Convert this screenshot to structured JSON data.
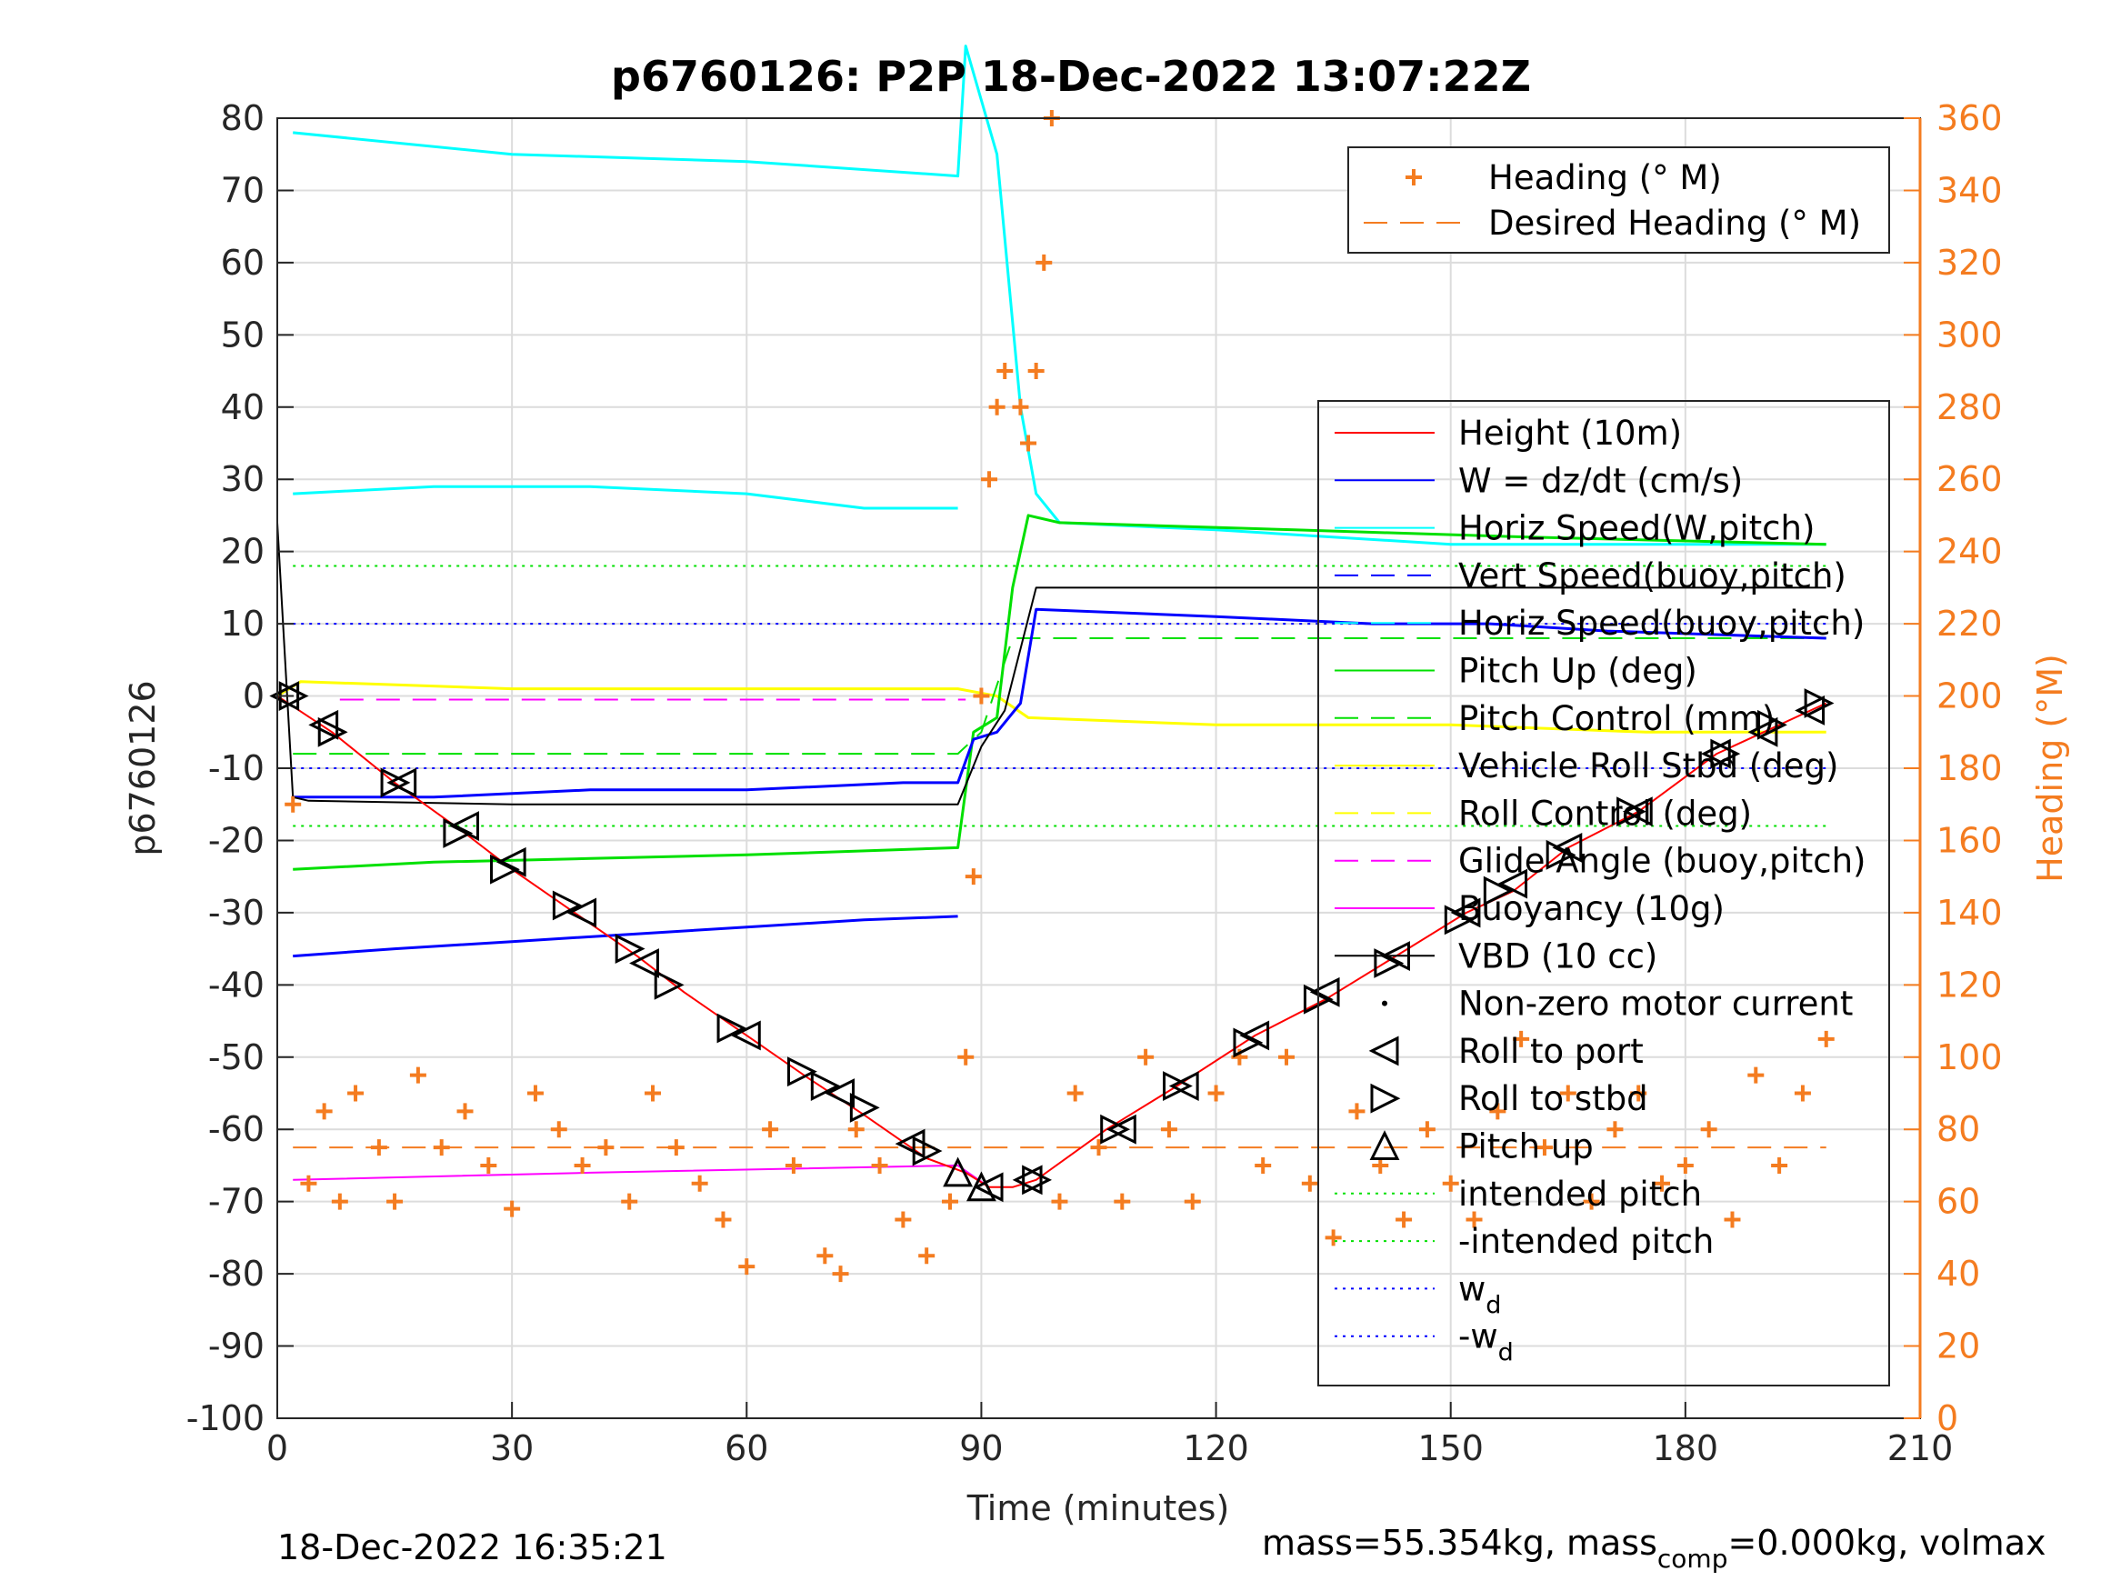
{
  "chart_data": {
    "type": "line",
    "title": "p6760126: P2P 18-Dec-2022 13:07:22Z",
    "xlabel": "Time (minutes)",
    "ylabel": "p6760126",
    "y2label": "Heading (°M)",
    "xlim": [
      0,
      210
    ],
    "ylim": [
      -100,
      80
    ],
    "y2lim": [
      0,
      360
    ],
    "xticks": [
      "0",
      "30",
      "60",
      "90",
      "120",
      "150",
      "180",
      "210"
    ],
    "yticks": [
      "80",
      "70",
      "60",
      "50",
      "40",
      "30",
      "20",
      "10",
      "0",
      "-10",
      "-20",
      "-30",
      "-40",
      "-50",
      "-60",
      "-70",
      "-80",
      "-90",
      "-100"
    ],
    "y2ticks": [
      "360",
      "340",
      "320",
      "300",
      "280",
      "260",
      "240",
      "220",
      "200",
      "180",
      "160",
      "140",
      "120",
      "100",
      "80",
      "60",
      "40",
      "20",
      "0"
    ],
    "grid": true,
    "footer_left": "18-Dec-2022 16:35:21",
    "footer_right": {
      "pre": "mass=55.354kg, mass",
      "sub": "comp",
      "post": "=0.000kg, volmax"
    },
    "legend_heading": [
      {
        "name": "Heading (° M)",
        "style": "plus",
        "color": "#f47c20"
      },
      {
        "name": "Desired Heading (° M)",
        "style": "dash",
        "color": "#f47c20"
      }
    ],
    "legend_main": [
      {
        "name": "Height (10m)",
        "style": "solid",
        "color": "#ff0000"
      },
      {
        "name": "W = dz/dt (cm/s)",
        "style": "solid",
        "color": "#0000ff"
      },
      {
        "name": "Horiz Speed(W,pitch)",
        "style": "solid",
        "color": "#00ffff"
      },
      {
        "name": "Vert Speed(buoy,pitch)",
        "style": "dash",
        "color": "#0000ff"
      },
      {
        "name": "Horiz Speed(buoy,pitch)",
        "style": "dash",
        "color": "#00ffff"
      },
      {
        "name": "Pitch Up (deg)",
        "style": "solid",
        "color": "#00e000"
      },
      {
        "name": "Pitch Control (mm)",
        "style": "dash",
        "color": "#00e000"
      },
      {
        "name": "Vehicle Roll Stbd (deg)",
        "style": "solid",
        "color": "#ffff00"
      },
      {
        "name": "Roll Control (deg)",
        "style": "dash",
        "color": "#ffff00"
      },
      {
        "name": "Glide Angle (buoy,pitch)",
        "style": "dash",
        "color": "#ff00ff"
      },
      {
        "name": "Buoyancy (10g)",
        "style": "solid",
        "color": "#ff00ff"
      },
      {
        "name": "VBD (10 cc)",
        "style": "solid",
        "color": "#000000"
      },
      {
        "name": "Non-zero motor current",
        "style": "dot",
        "color": "#000000"
      },
      {
        "name": "Roll to port",
        "style": "tri-left",
        "color": "#000000"
      },
      {
        "name": "Roll to stbd",
        "style": "tri-right",
        "color": "#000000"
      },
      {
        "name": "Pitch up",
        "style": "tri-up",
        "color": "#000000"
      },
      {
        "name": "intended pitch",
        "style": "dotted",
        "color": "#00e000"
      },
      {
        "name": "-intended pitch",
        "style": "dotted",
        "color": "#00e000"
      },
      {
        "name": "w",
        "sub": "d",
        "style": "dotted",
        "color": "#0000ff"
      },
      {
        "name": "-w",
        "sub": "d",
        "style": "dotted",
        "color": "#0000ff"
      }
    ],
    "series": {
      "height": [
        [
          0,
          0
        ],
        [
          7,
          -5
        ],
        [
          15,
          -12
        ],
        [
          24,
          -19
        ],
        [
          30,
          -24
        ],
        [
          38,
          -30
        ],
        [
          46,
          -36
        ],
        [
          52,
          -41
        ],
        [
          60,
          -47
        ],
        [
          68,
          -53
        ],
        [
          75,
          -58
        ],
        [
          83,
          -64
        ],
        [
          88,
          -66
        ],
        [
          91,
          -68
        ],
        [
          94,
          -68
        ],
        [
          97,
          -67
        ],
        [
          106,
          -60
        ],
        [
          115,
          -54
        ],
        [
          125,
          -47
        ],
        [
          134,
          -42
        ],
        [
          143,
          -36
        ],
        [
          152,
          -30
        ],
        [
          158,
          -27
        ],
        [
          165,
          -21
        ],
        [
          174,
          -16
        ],
        [
          184,
          -8
        ],
        [
          190,
          -5
        ],
        [
          198,
          -1
        ]
      ],
      "vbd": [
        [
          0,
          24
        ],
        [
          1,
          5
        ],
        [
          2,
          -14
        ],
        [
          4,
          -14.5
        ],
        [
          30,
          -15
        ],
        [
          60,
          -15
        ],
        [
          87,
          -15
        ],
        [
          90,
          -7
        ],
        [
          93,
          -2
        ],
        [
          97,
          15
        ],
        [
          198,
          15
        ]
      ],
      "buoyancy": [
        [
          2,
          -67
        ],
        [
          40,
          -66
        ],
        [
          87,
          -65
        ],
        [
          91,
          -68
        ]
      ],
      "vert_speed": [
        [
          2,
          -36
        ],
        [
          15,
          -35
        ],
        [
          30,
          -34
        ],
        [
          45,
          -33
        ],
        [
          60,
          -32
        ],
        [
          75,
          -31
        ],
        [
          87,
          -30.5
        ]
      ],
      "w_dzdt": [
        [
          2,
          -14
        ],
        [
          20,
          -14
        ],
        [
          40,
          -13
        ],
        [
          60,
          -13
        ],
        [
          80,
          -12
        ],
        [
          87,
          -12
        ],
        [
          89,
          -6
        ],
        [
          92,
          -5
        ],
        [
          95,
          -1
        ],
        [
          97,
          12
        ],
        [
          120,
          11
        ],
        [
          140,
          10
        ],
        [
          155,
          10
        ],
        [
          170,
          9
        ],
        [
          198,
          8
        ]
      ],
      "horiz_speed_w": [
        [
          2,
          78
        ],
        [
          30,
          75
        ],
        [
          60,
          74
        ],
        [
          87,
          72
        ],
        [
          88,
          90
        ],
        [
          92,
          75
        ],
        [
          95,
          40
        ],
        [
          97,
          28
        ],
        [
          100,
          24
        ],
        [
          120,
          23
        ],
        [
          150,
          21
        ],
        [
          180,
          21
        ],
        [
          198,
          21
        ]
      ],
      "horiz_speed_buoy": [
        [
          2,
          28
        ],
        [
          20,
          29
        ],
        [
          40,
          29
        ],
        [
          60,
          28
        ],
        [
          75,
          26
        ],
        [
          87,
          26
        ]
      ],
      "pitch_up": [
        [
          2,
          -24
        ],
        [
          20,
          -23
        ],
        [
          40,
          -22.5
        ],
        [
          60,
          -22
        ],
        [
          87,
          -21
        ],
        [
          89,
          -5
        ],
        [
          92,
          -3
        ],
        [
          94,
          15
        ],
        [
          96,
          25
        ],
        [
          100,
          24
        ],
        [
          130,
          23
        ],
        [
          160,
          22
        ],
        [
          198,
          21
        ]
      ],
      "pitch_control": [
        [
          2,
          -8
        ],
        [
          87,
          -8
        ],
        [
          90,
          -5
        ],
        [
          94,
          8
        ],
        [
          198,
          8
        ]
      ],
      "roll_stbd": [
        [
          0,
          0
        ],
        [
          3,
          2
        ],
        [
          30,
          1
        ],
        [
          60,
          1
        ],
        [
          87,
          1
        ],
        [
          92,
          0
        ],
        [
          96,
          -3
        ],
        [
          120,
          -4
        ],
        [
          150,
          -4
        ],
        [
          175,
          -5
        ],
        [
          198,
          -5
        ]
      ],
      "glide_angle": [
        [
          8,
          -0.5
        ],
        [
          88,
          -0.5
        ]
      ],
      "heading": [
        [
          2,
          170
        ],
        [
          4,
          65
        ],
        [
          6,
          85
        ],
        [
          8,
          60
        ],
        [
          10,
          90
        ],
        [
          13,
          75
        ],
        [
          15,
          60
        ],
        [
          18,
          95
        ],
        [
          21,
          75
        ],
        [
          24,
          85
        ],
        [
          27,
          70
        ],
        [
          30,
          58
        ],
        [
          33,
          90
        ],
        [
          36,
          80
        ],
        [
          39,
          70
        ],
        [
          42,
          75
        ],
        [
          45,
          60
        ],
        [
          48,
          90
        ],
        [
          51,
          75
        ],
        [
          54,
          65
        ],
        [
          57,
          55
        ],
        [
          60,
          42
        ],
        [
          63,
          80
        ],
        [
          66,
          70
        ],
        [
          70,
          45
        ],
        [
          72,
          40
        ],
        [
          74,
          80
        ],
        [
          77,
          70
        ],
        [
          80,
          55
        ],
        [
          83,
          45
        ],
        [
          86,
          60
        ],
        [
          88,
          100
        ],
        [
          89,
          150
        ],
        [
          90,
          200
        ],
        [
          91,
          260
        ],
        [
          92,
          280
        ],
        [
          93,
          290
        ],
        [
          95,
          280
        ],
        [
          96,
          270
        ],
        [
          97,
          290
        ],
        [
          98,
          320
        ],
        [
          99,
          360
        ],
        [
          100,
          60
        ],
        [
          102,
          90
        ],
        [
          105,
          75
        ],
        [
          108,
          60
        ],
        [
          111,
          100
        ],
        [
          114,
          80
        ],
        [
          117,
          60
        ],
        [
          120,
          90
        ],
        [
          123,
          100
        ],
        [
          126,
          70
        ],
        [
          129,
          100
        ],
        [
          132,
          65
        ],
        [
          135,
          50
        ],
        [
          138,
          85
        ],
        [
          141,
          70
        ],
        [
          144,
          55
        ],
        [
          147,
          80
        ],
        [
          150,
          65
        ],
        [
          153,
          55
        ],
        [
          156,
          85
        ],
        [
          159,
          105
        ],
        [
          162,
          75
        ],
        [
          165,
          90
        ],
        [
          168,
          60
        ],
        [
          171,
          80
        ],
        [
          174,
          90
        ],
        [
          177,
          65
        ],
        [
          180,
          70
        ],
        [
          183,
          80
        ],
        [
          186,
          55
        ],
        [
          189,
          95
        ],
        [
          192,
          70
        ],
        [
          195,
          90
        ],
        [
          198,
          105
        ]
      ],
      "desired_heading": 75,
      "intended_pitch": 18,
      "neg_intended_pitch": -18,
      "w_d": 10,
      "neg_w_d": -10,
      "roll_port_markers": [
        [
          1,
          0
        ],
        [
          6,
          -4
        ],
        [
          16,
          -12
        ],
        [
          24,
          -18
        ],
        [
          30,
          -23
        ],
        [
          39,
          -30
        ],
        [
          47,
          -37
        ],
        [
          60,
          -47
        ],
        [
          72,
          -55
        ],
        [
          81,
          -62
        ],
        [
          91,
          -68
        ],
        [
          96,
          -67
        ],
        [
          108,
          -60
        ],
        [
          116,
          -54
        ],
        [
          125,
          -47
        ],
        [
          134,
          -41
        ],
        [
          143,
          -36
        ],
        [
          152,
          -30
        ],
        [
          158,
          -26
        ],
        [
          165,
          -21
        ],
        [
          174,
          -16
        ],
        [
          184,
          -8
        ],
        [
          190,
          -5
        ],
        [
          196,
          -2
        ]
      ],
      "roll_stbd_markers": [
        [
          2,
          0
        ],
        [
          7,
          -5
        ],
        [
          15,
          -12
        ],
        [
          23,
          -19
        ],
        [
          29,
          -24
        ],
        [
          37,
          -29
        ],
        [
          45,
          -35
        ],
        [
          50,
          -40
        ],
        [
          58,
          -46
        ],
        [
          67,
          -52
        ],
        [
          70,
          -54
        ],
        [
          75,
          -57
        ],
        [
          83,
          -63
        ],
        [
          97,
          -67
        ],
        [
          107,
          -60
        ],
        [
          115,
          -54
        ],
        [
          124,
          -48
        ],
        [
          133,
          -42
        ],
        [
          142,
          -37
        ],
        [
          151,
          -31
        ],
        [
          156,
          -27
        ],
        [
          164,
          -22
        ],
        [
          173,
          -16
        ],
        [
          185,
          -8
        ],
        [
          191,
          -4
        ],
        [
          197,
          -1
        ]
      ],
      "pitch_up_markers": [
        [
          87,
          -66
        ],
        [
          90,
          -68
        ]
      ]
    }
  }
}
